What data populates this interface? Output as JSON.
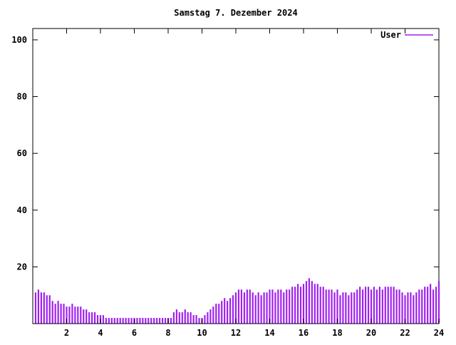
{
  "chart_data": {
    "type": "bar",
    "style": "impulses",
    "title": "Samstag 7. Dezember 2024",
    "xlabel": "",
    "ylabel": "",
    "xlim": [
      0,
      24
    ],
    "ylim": [
      0,
      104
    ],
    "xticks": [
      2,
      4,
      6,
      8,
      10,
      12,
      14,
      16,
      18,
      20,
      22,
      24
    ],
    "yticks": [
      20,
      40,
      60,
      80,
      100
    ],
    "grid": false,
    "legend_position": "top-right",
    "x_unit": "hour-of-day",
    "interval_minutes": 10,
    "series": [
      {
        "name": "User",
        "color": "#a020f0",
        "values": [
          11,
          12,
          11,
          11,
          10,
          10,
          8,
          7,
          8,
          7,
          7,
          6,
          6,
          7,
          6,
          6,
          6,
          5,
          5,
          4,
          4,
          4,
          3,
          3,
          3,
          2,
          2,
          2,
          2,
          2,
          2,
          2,
          2,
          2,
          2,
          2,
          2,
          2,
          2,
          2,
          2,
          2,
          2,
          2,
          2,
          2,
          2,
          2,
          2,
          4,
          5,
          4,
          4,
          5,
          4,
          4,
          3,
          3,
          2,
          2,
          3,
          4,
          5,
          6,
          7,
          7,
          8,
          9,
          8,
          9,
          10,
          11,
          12,
          12,
          11,
          12,
          12,
          11,
          10,
          11,
          10,
          11,
          11,
          12,
          12,
          11,
          12,
          12,
          11,
          12,
          12,
          13,
          13,
          14,
          13,
          14,
          15,
          16,
          15,
          14,
          14,
          13,
          13,
          12,
          12,
          12,
          11,
          12,
          10,
          11,
          11,
          10,
          11,
          11,
          12,
          13,
          12,
          13,
          13,
          12,
          13,
          12,
          13,
          12,
          13,
          13,
          13,
          13,
          12,
          12,
          11,
          10,
          11,
          11,
          10,
          11,
          12,
          12,
          13,
          13,
          14,
          12,
          13,
          15
        ]
      }
    ]
  },
  "legend": {
    "label": "User"
  },
  "colors": {
    "axis": "#000000",
    "bars": "#a020f0",
    "background": "#ffffff"
  }
}
